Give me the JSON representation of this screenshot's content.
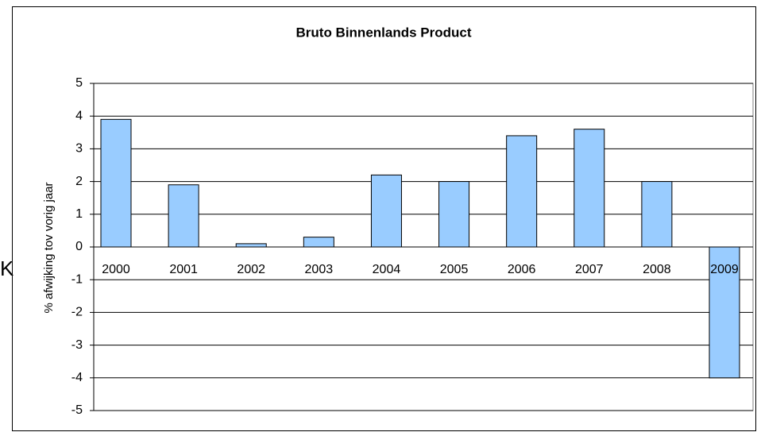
{
  "chart_data": {
    "type": "bar",
    "title": "Bruto Binnenlands Product",
    "y_label": "% afwijking tov vorig jaar",
    "annotation": "K",
    "categories": [
      "2000",
      "2001",
      "2002",
      "2003",
      "2004",
      "2005",
      "2006",
      "2007",
      "2008",
      "2009"
    ],
    "values": [
      3.9,
      1.9,
      0.1,
      0.3,
      2.2,
      2.0,
      3.4,
      3.6,
      2.0,
      -4.0
    ],
    "color": "#99ccff",
    "ylim": [
      -5,
      5
    ],
    "yticks": [
      -5,
      -4,
      -3,
      -2,
      -1,
      0,
      1,
      2,
      3,
      4,
      5
    ],
    "grid": true
  }
}
